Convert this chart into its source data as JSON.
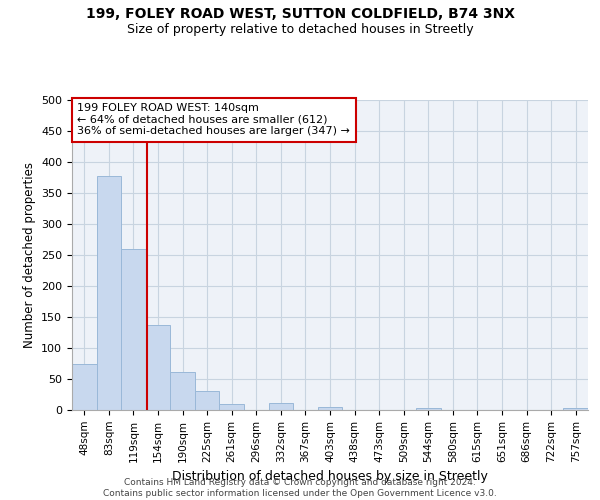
{
  "title_line1": "199, FOLEY ROAD WEST, SUTTON COLDFIELD, B74 3NX",
  "title_line2": "Size of property relative to detached houses in Streetly",
  "xlabel": "Distribution of detached houses by size in Streetly",
  "ylabel": "Number of detached properties",
  "categories": [
    "48sqm",
    "83sqm",
    "119sqm",
    "154sqm",
    "190sqm",
    "225sqm",
    "261sqm",
    "296sqm",
    "332sqm",
    "367sqm",
    "403sqm",
    "438sqm",
    "473sqm",
    "509sqm",
    "544sqm",
    "580sqm",
    "615sqm",
    "651sqm",
    "686sqm",
    "722sqm",
    "757sqm"
  ],
  "values": [
    74,
    378,
    260,
    137,
    62,
    30,
    10,
    0,
    11,
    0,
    5,
    0,
    0,
    0,
    4,
    0,
    0,
    0,
    0,
    0,
    4
  ],
  "bar_color": "#c8d8ee",
  "bar_edge_color": "#9ab8d8",
  "grid_color": "#c8d4e0",
  "background_color": "#eef2f8",
  "vline_color": "#cc0000",
  "annotation_text": "199 FOLEY ROAD WEST: 140sqm\n← 64% of detached houses are smaller (612)\n36% of semi-detached houses are larger (347) →",
  "annotation_box_color": "#cc0000",
  "footer_line1": "Contains HM Land Registry data © Crown copyright and database right 2024.",
  "footer_line2": "Contains public sector information licensed under the Open Government Licence v3.0.",
  "ylim": [
    0,
    500
  ],
  "yticks": [
    0,
    50,
    100,
    150,
    200,
    250,
    300,
    350,
    400,
    450,
    500
  ],
  "vline_pos": 2.57
}
